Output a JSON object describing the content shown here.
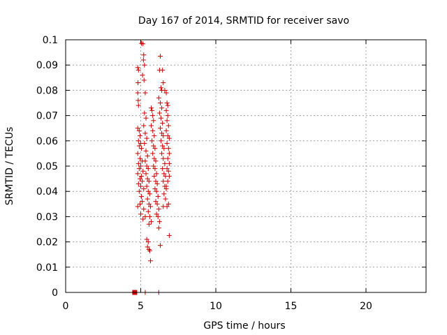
{
  "chart_data": {
    "type": "scatter",
    "title": "Day 167 of 2014, SRMTID for receiver savo",
    "xlabel": "GPS time / hours",
    "ylabel": "SRMTID / TECUs",
    "xlim": [
      0,
      24
    ],
    "ylim": [
      0,
      0.1
    ],
    "grid": true,
    "legend": "none",
    "x_ticks": [
      0,
      5,
      10,
      15,
      20
    ],
    "x_tick_labels": [
      "0",
      "5",
      "10",
      "15",
      "20"
    ],
    "y_ticks": [
      0,
      0.01,
      0.02,
      0.03,
      0.04,
      0.05,
      0.06,
      0.07,
      0.08,
      0.09,
      0.1
    ],
    "y_tick_labels": [
      "0",
      "0.01",
      "0.02",
      "0.03",
      "0.04",
      "0.05",
      "0.06",
      "0.07",
      "0.08",
      "0.09",
      "0.1"
    ],
    "colors": {
      "series": "#cc0000",
      "grid": "#a0a0a0",
      "axis": "#000000"
    },
    "series": [
      {
        "name": "SRMTID",
        "marker": "plus",
        "points": [
          [
            4.8,
            0.089
          ],
          [
            4.85,
            0.088
          ],
          [
            4.82,
            0.083
          ],
          [
            4.8,
            0.079
          ],
          [
            4.83,
            0.076
          ],
          [
            4.85,
            0.074
          ],
          [
            4.8,
            0.065
          ],
          [
            4.9,
            0.064
          ],
          [
            4.95,
            0.062
          ],
          [
            4.85,
            0.06
          ],
          [
            5.0,
            0.059
          ],
          [
            4.9,
            0.058
          ],
          [
            5.05,
            0.057
          ],
          [
            4.8,
            0.055
          ],
          [
            4.95,
            0.053
          ],
          [
            5.1,
            0.052
          ],
          [
            4.85,
            0.051
          ],
          [
            5.0,
            0.05
          ],
          [
            4.9,
            0.049
          ],
          [
            5.15,
            0.048
          ],
          [
            4.8,
            0.047
          ],
          [
            5.05,
            0.046
          ],
          [
            4.95,
            0.045
          ],
          [
            5.1,
            0.044
          ],
          [
            4.85,
            0.043
          ],
          [
            5.0,
            0.042
          ],
          [
            5.2,
            0.041
          ],
          [
            4.9,
            0.04
          ],
          [
            5.05,
            0.038
          ],
          [
            4.8,
            0.034
          ],
          [
            5.1,
            0.036
          ],
          [
            4.95,
            0.035
          ],
          [
            5.2,
            0.033
          ],
          [
            5.0,
            0.031
          ],
          [
            5.3,
            0.03
          ],
          [
            5.15,
            0.029
          ],
          [
            5.05,
            0.0986
          ],
          [
            5.15,
            0.0984
          ],
          [
            5.2,
            0.094
          ],
          [
            5.18,
            0.092
          ],
          [
            5.25,
            0.09
          ],
          [
            5.12,
            0.086
          ],
          [
            5.22,
            0.084
          ],
          [
            5.3,
            0.079
          ],
          [
            5.25,
            0.071
          ],
          [
            5.35,
            0.069
          ],
          [
            5.2,
            0.066
          ],
          [
            5.3,
            0.063
          ],
          [
            5.4,
            0.061
          ],
          [
            5.25,
            0.059
          ],
          [
            5.35,
            0.056
          ],
          [
            5.45,
            0.054
          ],
          [
            5.3,
            0.052
          ],
          [
            5.4,
            0.05
          ],
          [
            5.5,
            0.049
          ],
          [
            5.35,
            0.047
          ],
          [
            5.45,
            0.045
          ],
          [
            5.55,
            0.044
          ],
          [
            5.4,
            0.042
          ],
          [
            5.5,
            0.04
          ],
          [
            5.6,
            0.039
          ],
          [
            5.45,
            0.037
          ],
          [
            5.55,
            0.035
          ],
          [
            5.65,
            0.034
          ],
          [
            5.5,
            0.032
          ],
          [
            5.6,
            0.03
          ],
          [
            5.7,
            0.028
          ],
          [
            5.55,
            0.027
          ],
          [
            5.4,
            0.021
          ],
          [
            5.5,
            0.02
          ],
          [
            5.45,
            0.018
          ],
          [
            5.55,
            0.017
          ],
          [
            5.6,
            0.0165
          ],
          [
            5.65,
            0.0125
          ],
          [
            5.7,
            0.073
          ],
          [
            5.75,
            0.072
          ],
          [
            5.8,
            0.07
          ],
          [
            5.85,
            0.068
          ],
          [
            5.7,
            0.066
          ],
          [
            5.8,
            0.064
          ],
          [
            5.9,
            0.062
          ],
          [
            5.75,
            0.06
          ],
          [
            5.85,
            0.058
          ],
          [
            5.95,
            0.057
          ],
          [
            5.8,
            0.055
          ],
          [
            5.9,
            0.053
          ],
          [
            6.0,
            0.052
          ],
          [
            5.85,
            0.05
          ],
          [
            5.95,
            0.049
          ],
          [
            6.05,
            0.047
          ],
          [
            5.9,
            0.046
          ],
          [
            6.0,
            0.044
          ],
          [
            6.1,
            0.043
          ],
          [
            5.95,
            0.041
          ],
          [
            6.05,
            0.04
          ],
          [
            6.15,
            0.038
          ],
          [
            6.0,
            0.036
          ],
          [
            6.1,
            0.035
          ],
          [
            6.2,
            0.033
          ],
          [
            6.05,
            0.031
          ],
          [
            6.15,
            0.03
          ],
          [
            6.25,
            0.028
          ],
          [
            6.2,
            0.0255
          ],
          [
            6.3,
            0.0186
          ],
          [
            6.3,
            0.0935
          ],
          [
            6.25,
            0.088
          ],
          [
            6.35,
            0.081
          ],
          [
            6.4,
            0.08
          ],
          [
            6.2,
            0.077
          ],
          [
            6.3,
            0.075
          ],
          [
            6.4,
            0.073
          ],
          [
            6.25,
            0.071
          ],
          [
            6.35,
            0.069
          ],
          [
            6.45,
            0.067
          ],
          [
            6.3,
            0.065
          ],
          [
            6.4,
            0.063
          ],
          [
            6.5,
            0.062
          ],
          [
            6.35,
            0.06
          ],
          [
            6.45,
            0.058
          ],
          [
            6.55,
            0.057
          ],
          [
            6.4,
            0.055
          ],
          [
            6.5,
            0.053
          ],
          [
            6.6,
            0.051
          ],
          [
            6.45,
            0.049
          ],
          [
            6.55,
            0.047
          ],
          [
            6.65,
            0.046
          ],
          [
            6.5,
            0.044
          ],
          [
            6.6,
            0.042
          ],
          [
            6.7,
            0.041
          ],
          [
            6.55,
            0.039
          ],
          [
            6.65,
            0.037
          ],
          [
            6.5,
            0.034
          ],
          [
            6.45,
            0.088
          ],
          [
            6.5,
            0.083
          ],
          [
            6.6,
            0.08
          ],
          [
            6.7,
            0.079
          ],
          [
            6.75,
            0.075
          ],
          [
            6.8,
            0.074
          ],
          [
            6.7,
            0.072
          ],
          [
            6.8,
            0.07
          ],
          [
            6.75,
            0.068
          ],
          [
            6.85,
            0.066
          ],
          [
            6.7,
            0.064
          ],
          [
            6.8,
            0.062
          ],
          [
            6.9,
            0.061
          ],
          [
            6.75,
            0.059
          ],
          [
            6.85,
            0.057
          ],
          [
            6.9,
            0.055
          ],
          [
            6.8,
            0.053
          ],
          [
            6.9,
            0.051
          ],
          [
            6.75,
            0.049
          ],
          [
            6.85,
            0.048
          ],
          [
            6.9,
            0.046
          ],
          [
            6.8,
            0.044
          ],
          [
            6.7,
            0.042
          ],
          [
            6.85,
            0.035
          ],
          [
            6.75,
            0.034
          ],
          [
            6.9,
            0.0225
          ],
          [
            5.3,
            0.0
          ],
          [
            6.2,
            0.0
          ],
          [
            4.7,
            0.0
          ]
        ]
      }
    ],
    "highlight_points": [
      {
        "marker": "square",
        "x": 4.6,
        "y": 0.0
      }
    ]
  }
}
